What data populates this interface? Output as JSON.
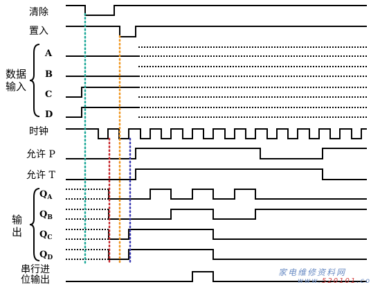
{
  "labels": {
    "clear": "清除",
    "load": "置入",
    "data_group": "数据输入",
    "data_group_line1": "数据",
    "data_group_line2": "输入",
    "a": "A",
    "b": "B",
    "c": "C",
    "d": "D",
    "clock": "时钟",
    "enable_p": "允许 P",
    "enable_t": "允许 T",
    "qa_base": "Q",
    "qa_sub": "A",
    "qb_base": "Q",
    "qb_sub": "B",
    "qc_base": "Q",
    "qc_sub": "C",
    "qd_base": "Q",
    "qd_sub": "D",
    "output_group_line1": "输",
    "output_group_line2": "出",
    "serial_line1": "串行进",
    "serial_line2": "位输出"
  },
  "watermark": {
    "text_pre": "家电维修资料网",
    "text_url_pre": "www.",
    "text_url_red": "520101",
    "text_url_post": ".com"
  },
  "colors": {
    "line": "#000000",
    "marker_green": "#1aa898",
    "marker_orange": "#f0961e",
    "marker_red": "#c8282d",
    "marker_blue": "#3c3cb4",
    "watermark": "#6a8cc4",
    "watermark_red": "#d23a3a"
  }
}
